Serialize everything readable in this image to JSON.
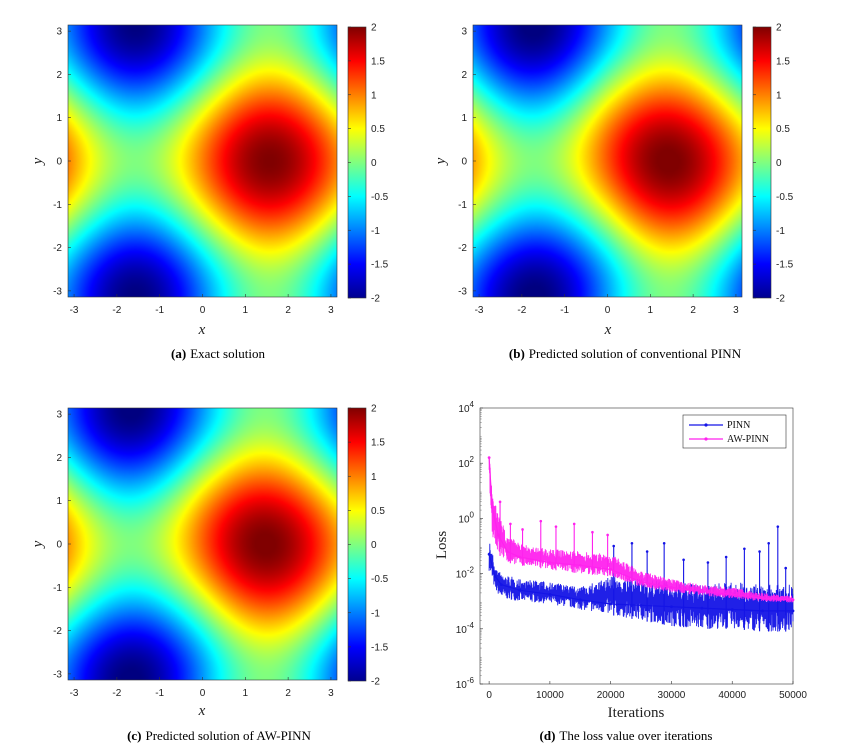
{
  "chart_data": [
    {
      "panel": "a",
      "type": "heatmap",
      "caption_tag": "(a)",
      "caption_text": "Exact solution",
      "xlabel": "x",
      "ylabel": "y",
      "xlim": [
        -3.14159,
        3.14159
      ],
      "ylim": [
        -3.14159,
        3.14159
      ],
      "xticks": [
        -3,
        -2,
        -1,
        0,
        1,
        2,
        3
      ],
      "yticks": [
        -3,
        -2,
        -1,
        0,
        1,
        2,
        3
      ],
      "colorbar": {
        "min": -2,
        "max": 2,
        "ticks": [
          -2,
          -1.5,
          -1,
          -0.5,
          0,
          0.5,
          1,
          1.5,
          2
        ],
        "colormap": "jet"
      },
      "field": {
        "formula": "sin(x) + cos(y)",
        "x_shift": 0,
        "y_shift": 0
      }
    },
    {
      "panel": "b",
      "type": "heatmap",
      "caption_tag": "(b)",
      "caption_text": "Predicted solution of conventional PINN",
      "xlabel": "x",
      "ylabel": "y",
      "xlim": [
        -3.14159,
        3.14159
      ],
      "ylim": [
        -3.14159,
        3.14159
      ],
      "xticks": [
        -3,
        -2,
        -1,
        0,
        1,
        2,
        3
      ],
      "yticks": [
        -3,
        -2,
        -1,
        0,
        1,
        2,
        3
      ],
      "colorbar": {
        "min": -2,
        "max": 2,
        "ticks": [
          -2,
          -1.5,
          -1,
          -0.5,
          0,
          0.5,
          1,
          1.5,
          2
        ],
        "colormap": "jet"
      },
      "field": {
        "formula": "sin(x) + cos(y)",
        "x_shift": -0.15,
        "y_shift": 0,
        "distortion": 0.35
      }
    },
    {
      "panel": "c",
      "type": "heatmap",
      "caption_tag": "(c)",
      "caption_text": "Predicted solution of AW-PINN",
      "xlabel": "x",
      "ylabel": "y",
      "xlim": [
        -3.14159,
        3.14159
      ],
      "ylim": [
        -3.14159,
        3.14159
      ],
      "xticks": [
        -3,
        -2,
        -1,
        0,
        1,
        2,
        3
      ],
      "yticks": [
        -3,
        -2,
        -1,
        0,
        1,
        2,
        3
      ],
      "colorbar": {
        "min": -2,
        "max": 2,
        "ticks": [
          -2,
          -1.5,
          -1,
          -0.5,
          0,
          0.5,
          1,
          1.5,
          2
        ],
        "colormap": "jet"
      },
      "field": {
        "formula": "sin(x) + cos(y)",
        "x_shift": -0.1,
        "y_shift": 0,
        "distortion": 0.28
      }
    },
    {
      "panel": "d",
      "type": "line",
      "caption_tag": "(d)",
      "caption_text": "The loss value over iterations",
      "xlabel": "Iterations",
      "ylabel": "Loss",
      "xlim": [
        -1500,
        50000
      ],
      "ylim_log10": [
        -6,
        4
      ],
      "xticks": [
        0,
        10000,
        20000,
        30000,
        40000,
        50000
      ],
      "yticks": [
        {
          "base": "10",
          "exp": "4",
          "log10": 4
        },
        {
          "base": "10",
          "exp": "2",
          "log10": 2
        },
        {
          "base": "10",
          "exp": "0",
          "log10": 0
        },
        {
          "base": "10",
          "exp": "-2",
          "log10": -2
        },
        {
          "base": "10",
          "exp": "-4",
          "log10": -4
        },
        {
          "base": "10",
          "exp": "-6",
          "log10": -6
        }
      ],
      "legend_position": "top-right",
      "series": [
        {
          "name": "PINN",
          "color": "#1414e6",
          "x": [
            0,
            1000,
            2000,
            5000,
            10000,
            15000,
            20000,
            25000,
            30000,
            35000,
            40000,
            45000,
            50000
          ],
          "log10_loss": [
            -1.3,
            -2.1,
            -2.4,
            -2.6,
            -2.75,
            -2.95,
            -3.1,
            -3.15,
            -3.2,
            -3.25,
            -3.3,
            -3.35,
            -3.35
          ],
          "band_low_log10": [
            -1.9,
            -2.6,
            -2.9,
            -3.0,
            -3.1,
            -3.3,
            -3.5,
            -3.7,
            -3.9,
            -4.0,
            -4.0,
            -4.1,
            -4.1
          ],
          "band_high_log10": [
            -0.7,
            -1.7,
            -2.0,
            -2.2,
            -2.3,
            -2.5,
            -2.1,
            -2.2,
            -2.3,
            -2.4,
            -2.3,
            -2.4,
            -2.4
          ],
          "spikes": [
            [
              20500,
              -1.0
            ],
            [
              23500,
              -0.9
            ],
            [
              26000,
              -1.2
            ],
            [
              28800,
              -0.9
            ],
            [
              32000,
              -1.5
            ],
            [
              36000,
              -1.6
            ],
            [
              39000,
              -1.4
            ],
            [
              42000,
              -1.1
            ],
            [
              44500,
              -1.2
            ],
            [
              46000,
              -0.9
            ],
            [
              47500,
              -0.3
            ],
            [
              48800,
              -1.8
            ]
          ]
        },
        {
          "name": "AW-PINN",
          "color": "#ff22ee",
          "x": [
            0,
            500,
            1500,
            3000,
            5000,
            10000,
            15000,
            20000,
            25000,
            30000,
            35000,
            40000,
            45000,
            50000
          ],
          "log10_loss": [
            2.2,
            0.4,
            -0.6,
            -1.2,
            -1.4,
            -1.6,
            -1.7,
            -1.85,
            -2.3,
            -2.5,
            -2.65,
            -2.75,
            -2.9,
            -2.95
          ],
          "band_low_log10": [
            1.5,
            -0.6,
            -1.3,
            -1.6,
            -1.7,
            -1.85,
            -2.0,
            -2.1,
            -2.5,
            -2.7,
            -2.8,
            -2.9,
            -3.0,
            -3.05
          ],
          "band_high_log10": [
            2.4,
            0.9,
            0.2,
            -0.6,
            -0.9,
            -1.1,
            -1.2,
            -1.3,
            -1.9,
            -2.2,
            -2.4,
            -2.5,
            -2.7,
            -2.8
          ],
          "spikes": [
            [
              1800,
              0.6
            ],
            [
              3500,
              -0.2
            ],
            [
              5500,
              -0.4
            ],
            [
              8500,
              -0.1
            ],
            [
              11000,
              -0.3
            ],
            [
              14000,
              -0.2
            ],
            [
              17000,
              -0.5
            ],
            [
              19500,
              -0.6
            ]
          ]
        }
      ]
    }
  ]
}
